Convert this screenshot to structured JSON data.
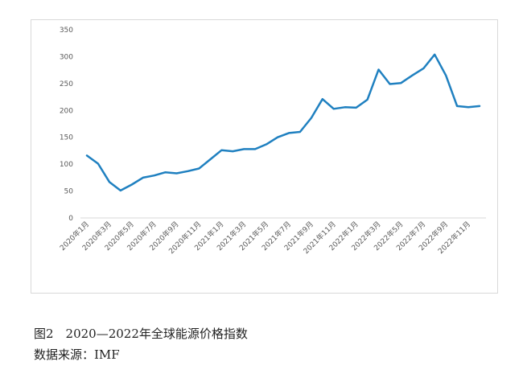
{
  "caption": {
    "figure_title": "图2　2020—2022年全球能源价格指数",
    "source": "数据来源：IMF"
  },
  "chart_data": {
    "type": "line",
    "title": "",
    "xlabel": "",
    "ylabel": "",
    "ylim": [
      0,
      350
    ],
    "yticks": [
      0,
      50,
      100,
      150,
      200,
      250,
      300,
      350
    ],
    "grid": false,
    "legend": "none",
    "line_color": "#1f80c0",
    "x": [
      "2020年1月",
      "2020年2月",
      "2020年3月",
      "2020年4月",
      "2020年5月",
      "2020年6月",
      "2020年7月",
      "2020年8月",
      "2020年9月",
      "2020年10月",
      "2020年11月",
      "2020年12月",
      "2021年1月",
      "2021年2月",
      "2021年3月",
      "2021年4月",
      "2021年5月",
      "2021年6月",
      "2021年7月",
      "2021年8月",
      "2021年9月",
      "2021年10月",
      "2021年11月",
      "2021年12月",
      "2022年1月",
      "2022年2月",
      "2022年3月",
      "2022年4月",
      "2022年5月",
      "2022年6月",
      "2022年7月",
      "2022年8月",
      "2022年9月",
      "2022年10月",
      "2022年11月",
      "2022年12月"
    ],
    "x_tick_labels": [
      "2020年1月",
      "2020年3月",
      "2020年5月",
      "2020年7月",
      "2020年9月",
      "2020年11月",
      "2021年1月",
      "2021年3月",
      "2021年5月",
      "2021年7月",
      "2021年9月",
      "2021年11月",
      "2022年1月",
      "2022年3月",
      "2022年5月",
      "2022年7月",
      "2022年9月",
      "2022年11月"
    ],
    "series": [
      {
        "values": [
          116,
          101,
          67,
          51,
          62,
          75,
          79,
          85,
          83,
          87,
          92,
          109,
          126,
          124,
          128,
          128,
          137,
          150,
          158,
          160,
          186,
          221,
          203,
          206,
          205,
          220,
          276,
          249,
          251,
          265,
          278,
          304,
          265,
          208,
          206,
          208
        ]
      }
    ]
  }
}
